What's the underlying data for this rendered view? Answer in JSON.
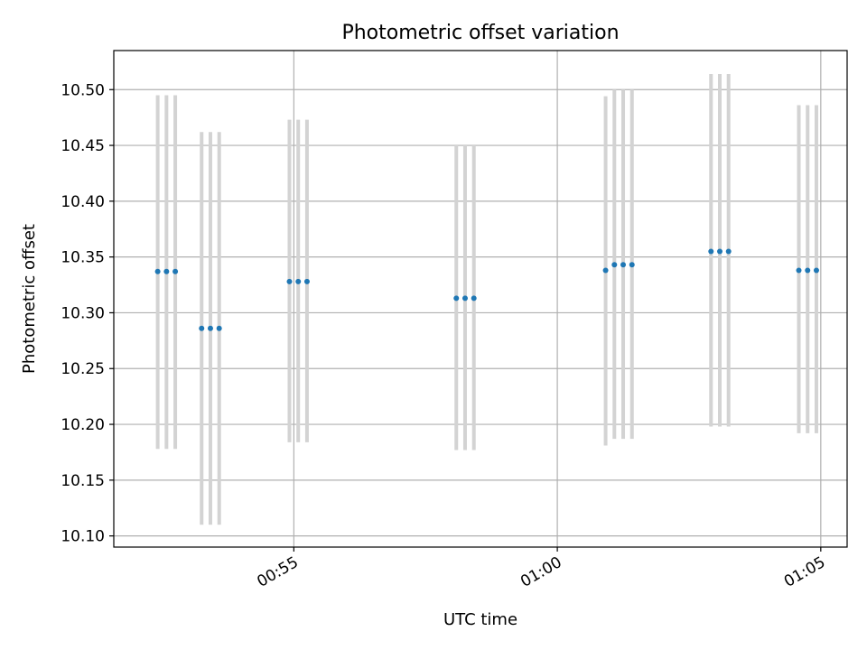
{
  "chart_data": {
    "type": "scatter",
    "title": "Photometric offset variation",
    "xlabel": "UTC time",
    "ylabel": "Photometric offset",
    "x_range": [
      "00:51:35",
      "01:05:30"
    ],
    "ylim": [
      10.09,
      10.535
    ],
    "y_ticks": [
      "10.10",
      "10.15",
      "10.20",
      "10.25",
      "10.30",
      "10.35",
      "10.40",
      "10.45",
      "10.50"
    ],
    "x_ticks": [
      {
        "time": "00:55:00",
        "label": "00:55"
      },
      {
        "time": "01:00:00",
        "label": "01:00"
      },
      {
        "time": "01:05:00",
        "label": "01:05"
      }
    ],
    "grid": true,
    "marker_color": "#1f77b4",
    "errorbar_color": "#d3d3d3",
    "series": [
      {
        "points": [
          {
            "time": "00:52:25",
            "y": 10.337,
            "yerr_low": 10.178,
            "yerr_high": 10.495
          },
          {
            "time": "00:52:35",
            "y": 10.337,
            "yerr_low": 10.178,
            "yerr_high": 10.495
          },
          {
            "time": "00:52:45",
            "y": 10.337,
            "yerr_low": 10.178,
            "yerr_high": 10.495
          },
          {
            "time": "00:53:15",
            "y": 10.286,
            "yerr_low": 10.11,
            "yerr_high": 10.462
          },
          {
            "time": "00:53:25",
            "y": 10.286,
            "yerr_low": 10.11,
            "yerr_high": 10.462
          },
          {
            "time": "00:53:35",
            "y": 10.286,
            "yerr_low": 10.11,
            "yerr_high": 10.462
          },
          {
            "time": "00:54:55",
            "y": 10.328,
            "yerr_low": 10.184,
            "yerr_high": 10.473
          },
          {
            "time": "00:55:05",
            "y": 10.328,
            "yerr_low": 10.184,
            "yerr_high": 10.473
          },
          {
            "time": "00:55:15",
            "y": 10.328,
            "yerr_low": 10.184,
            "yerr_high": 10.473
          },
          {
            "time": "00:58:05",
            "y": 10.313,
            "yerr_low": 10.177,
            "yerr_high": 10.45
          },
          {
            "time": "00:58:15",
            "y": 10.313,
            "yerr_low": 10.177,
            "yerr_high": 10.45
          },
          {
            "time": "00:58:25",
            "y": 10.313,
            "yerr_low": 10.177,
            "yerr_high": 10.45
          },
          {
            "time": "01:00:55",
            "y": 10.338,
            "yerr_low": 10.181,
            "yerr_high": 10.494
          },
          {
            "time": "01:01:05",
            "y": 10.343,
            "yerr_low": 10.187,
            "yerr_high": 10.5
          },
          {
            "time": "01:01:15",
            "y": 10.343,
            "yerr_low": 10.187,
            "yerr_high": 10.5
          },
          {
            "time": "01:01:25",
            "y": 10.343,
            "yerr_low": 10.187,
            "yerr_high": 10.5
          },
          {
            "time": "01:02:55",
            "y": 10.355,
            "yerr_low": 10.198,
            "yerr_high": 10.514
          },
          {
            "time": "01:03:05",
            "y": 10.355,
            "yerr_low": 10.198,
            "yerr_high": 10.514
          },
          {
            "time": "01:03:15",
            "y": 10.355,
            "yerr_low": 10.198,
            "yerr_high": 10.514
          },
          {
            "time": "01:04:35",
            "y": 10.338,
            "yerr_low": 10.192,
            "yerr_high": 10.486
          },
          {
            "time": "01:04:45",
            "y": 10.338,
            "yerr_low": 10.192,
            "yerr_high": 10.486
          },
          {
            "time": "01:04:55",
            "y": 10.338,
            "yerr_low": 10.192,
            "yerr_high": 10.486
          }
        ]
      }
    ]
  }
}
